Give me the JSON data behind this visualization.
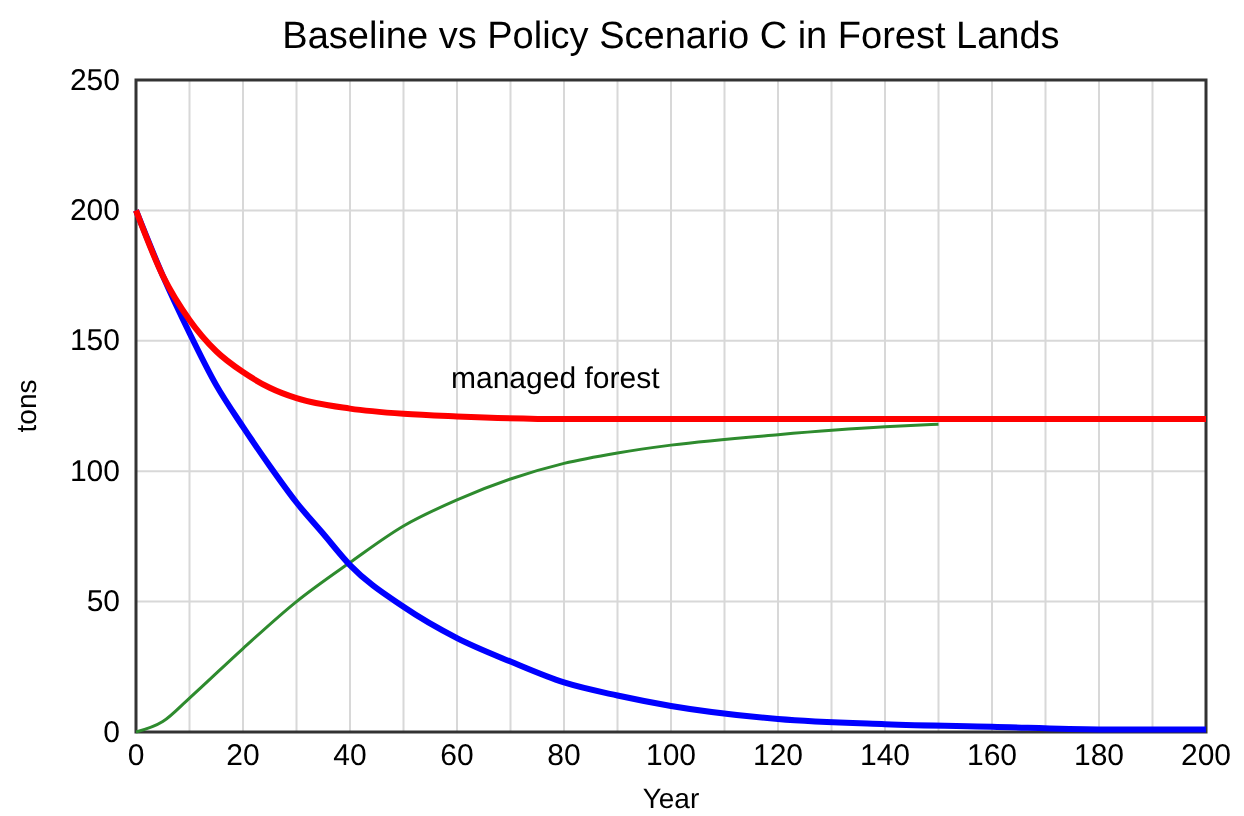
{
  "chart_data": {
    "type": "line",
    "title": "Baseline vs Policy Scenario C in Forest Lands",
    "xlabel": "Year",
    "ylabel": "tons",
    "xlim": [
      0,
      200
    ],
    "ylim": [
      0,
      250
    ],
    "xticks": [
      0,
      {
        "value": 10,
        "label": null
      },
      20,
      {
        "value": 30,
        "label": null
      },
      40,
      {
        "value": 50,
        "label": null
      },
      60,
      {
        "value": 70,
        "label": null
      },
      80,
      {
        "value": 90,
        "label": null
      },
      100,
      {
        "value": 110,
        "label": null
      },
      120,
      {
        "value": 130,
        "label": null
      },
      140,
      {
        "value": 150,
        "label": null
      },
      160,
      {
        "value": 170,
        "label": null
      },
      180,
      {
        "value": 190,
        "label": null
      },
      200
    ],
    "yticks": [
      0,
      50,
      100,
      150,
      200,
      250
    ],
    "grid": true,
    "series": [
      {
        "name": "managed forest",
        "color": "#ff0000",
        "x": [
          0,
          5,
          10,
          15,
          20,
          25,
          30,
          40,
          50,
          60,
          80,
          100,
          200
        ],
        "values": [
          200,
          175,
          158,
          146,
          138,
          132,
          128,
          124,
          122,
          121,
          120,
          120,
          120
        ]
      },
      {
        "color": "#0000ff",
        "x": [
          0,
          5,
          10,
          15,
          20,
          25,
          30,
          35,
          40,
          50,
          60,
          70,
          80,
          90,
          100,
          120,
          140,
          160,
          180,
          200
        ],
        "values": [
          200,
          175,
          153,
          133,
          117,
          102,
          88,
          76,
          64,
          48,
          36,
          27,
          19,
          14,
          10,
          5,
          3,
          2,
          1,
          1
        ]
      },
      {
        "color": "#2e8b2e",
        "x": [
          0,
          5,
          10,
          20,
          30,
          40,
          50,
          60,
          70,
          80,
          90,
          100,
          120,
          140,
          150
        ],
        "values": [
          0,
          4,
          13,
          32,
          50,
          65,
          79,
          89,
          97,
          103,
          107,
          110,
          114,
          117,
          118
        ]
      }
    ]
  }
}
